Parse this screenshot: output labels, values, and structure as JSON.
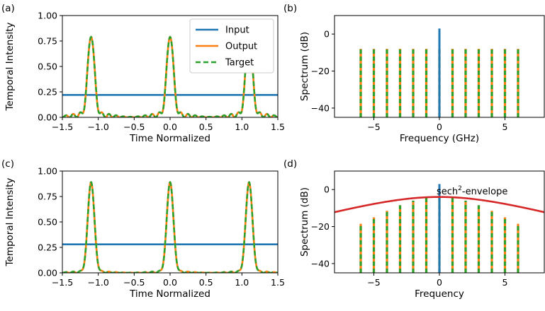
{
  "colors": {
    "input": "#1f77b4",
    "output": "#ff7f0e",
    "target": "#2ca02c",
    "envelope": "#d62728"
  },
  "chart_data": [
    {
      "id": "a",
      "panel_label": "(a)",
      "type": "line",
      "xlabel": "Time Normalized",
      "ylabel": "Temporal Intensity",
      "xlim": [
        -1.5,
        1.5
      ],
      "ylim": [
        0.0,
        1.0
      ],
      "xticks": [
        -1.5,
        -1.0,
        -0.5,
        0.0,
        0.5,
        1.0,
        1.5
      ],
      "xtick_labels": [
        "−1.5",
        "−1.0",
        "−0.5",
        "0.0",
        "0.5",
        "1.0",
        "1.5"
      ],
      "yticks": [
        0.0,
        0.25,
        0.5,
        0.75,
        1.0
      ],
      "ytick_labels": [
        "0.00",
        "0.25",
        "0.50",
        "0.75",
        "1.00"
      ],
      "legend": {
        "position": "upper-right",
        "entries": [
          "Input",
          "Output",
          "Target"
        ]
      },
      "series": [
        {
          "name": "Input",
          "style": "solid",
          "color_key": "input",
          "constant": 0.22
        },
        {
          "name": "Output",
          "style": "solid",
          "color_key": "output",
          "peaks": [
            -1.1,
            0.0,
            1.1
          ],
          "peak_height": 0.79,
          "ripple": 0.055
        },
        {
          "name": "Target",
          "style": "dashed",
          "color_key": "target",
          "peaks": [
            -1.1,
            0.0,
            1.1
          ],
          "peak_height": 0.79,
          "ripple": 0.055
        }
      ]
    },
    {
      "id": "b",
      "panel_label": "(b)",
      "type": "bar",
      "xlabel": "Frequency (GHz)",
      "ylabel": "Spectrum (dB)",
      "xlim": [
        -8,
        8
      ],
      "ylim": [
        -45,
        10
      ],
      "xticks": [
        -5,
        0,
        5
      ],
      "xtick_labels": [
        "−5",
        "0",
        "5"
      ],
      "yticks": [
        0,
        -20,
        -40
      ],
      "ytick_labels": [
        "0",
        "−20",
        "−40"
      ],
      "series": [
        {
          "name": "Input",
          "color_key": "input",
          "x": [
            0
          ],
          "values": [
            3
          ]
        },
        {
          "name": "Output",
          "color_key": "output",
          "x": [
            -6,
            -5,
            -4,
            -3,
            -2,
            -1,
            0,
            1,
            2,
            3,
            4,
            5,
            6
          ],
          "values": [
            -8,
            -8,
            -8,
            -8,
            -8,
            -8,
            -8,
            -8,
            -8,
            -8,
            -8,
            -8,
            -8
          ]
        },
        {
          "name": "Target",
          "color_key": "target",
          "x": [
            -6,
            -5,
            -4,
            -3,
            -2,
            -1,
            0,
            1,
            2,
            3,
            4,
            5,
            6
          ],
          "values": [
            -8,
            -8,
            -8,
            -8,
            -8,
            -8,
            -8,
            -8,
            -8,
            -8,
            -8,
            -8,
            -8
          ]
        }
      ]
    },
    {
      "id": "c",
      "panel_label": "(c)",
      "type": "line",
      "xlabel": "Time Normalized",
      "ylabel": "Temporal Intensity",
      "xlim": [
        -1.5,
        1.5
      ],
      "ylim": [
        0.0,
        1.0
      ],
      "xticks": [
        -1.5,
        -1.0,
        -0.5,
        0.0,
        0.5,
        1.0,
        1.5
      ],
      "xtick_labels": [
        "−1.5",
        "−1.0",
        "−0.5",
        "0.0",
        "0.5",
        "1.0",
        "1.5"
      ],
      "yticks": [
        0.0,
        0.25,
        0.5,
        0.75,
        1.0
      ],
      "ytick_labels": [
        "0.00",
        "0.25",
        "0.50",
        "0.75",
        "1.00"
      ],
      "series": [
        {
          "name": "Input",
          "style": "solid",
          "color_key": "input",
          "constant": 0.28
        },
        {
          "name": "Output",
          "style": "solid",
          "color_key": "output",
          "peaks": [
            -1.1,
            0.0,
            1.1
          ],
          "peak_height": 0.89,
          "ripple": 0.02
        },
        {
          "name": "Target",
          "style": "dashed",
          "color_key": "target",
          "peaks": [
            -1.1,
            0.0,
            1.1
          ],
          "peak_height": 0.89,
          "ripple": 0.02
        }
      ]
    },
    {
      "id": "d",
      "panel_label": "(d)",
      "type": "bar",
      "xlabel": "Frequency",
      "ylabel": "Spectrum (dB)",
      "xlim": [
        -8,
        8
      ],
      "ylim": [
        -45,
        10
      ],
      "xticks": [
        -5,
        0,
        5
      ],
      "xtick_labels": [
        "−5",
        "0",
        "5"
      ],
      "yticks": [
        0,
        -20,
        -40
      ],
      "ytick_labels": [
        "0",
        "−20",
        "−40"
      ],
      "annotation": {
        "base": "sech",
        "sup": "2",
        "rest": "-envelope"
      },
      "envelope": {
        "color_key": "envelope",
        "peak_db": -4,
        "width": 5.0
      },
      "series": [
        {
          "name": "Input",
          "color_key": "input",
          "x": [
            0
          ],
          "values": [
            3
          ]
        },
        {
          "name": "Output",
          "color_key": "output",
          "x": [
            -6,
            -5,
            -4,
            -3,
            -2,
            -1,
            0,
            1,
            2,
            3,
            4,
            5,
            6
          ],
          "values": [
            -18.5,
            -15,
            -11.5,
            -8.5,
            -6,
            -4.5,
            -4,
            -4.5,
            -6,
            -8.5,
            -11.5,
            -15,
            -18.5
          ]
        },
        {
          "name": "Target",
          "color_key": "target",
          "x": [
            -6,
            -5,
            -4,
            -3,
            -2,
            -1,
            0,
            1,
            2,
            3,
            4,
            5,
            6
          ],
          "values": [
            -18.5,
            -15,
            -11.5,
            -8.5,
            -6,
            -4.5,
            -4,
            -4.5,
            -6,
            -8.5,
            -11.5,
            -15,
            -18.5
          ]
        }
      ]
    }
  ]
}
